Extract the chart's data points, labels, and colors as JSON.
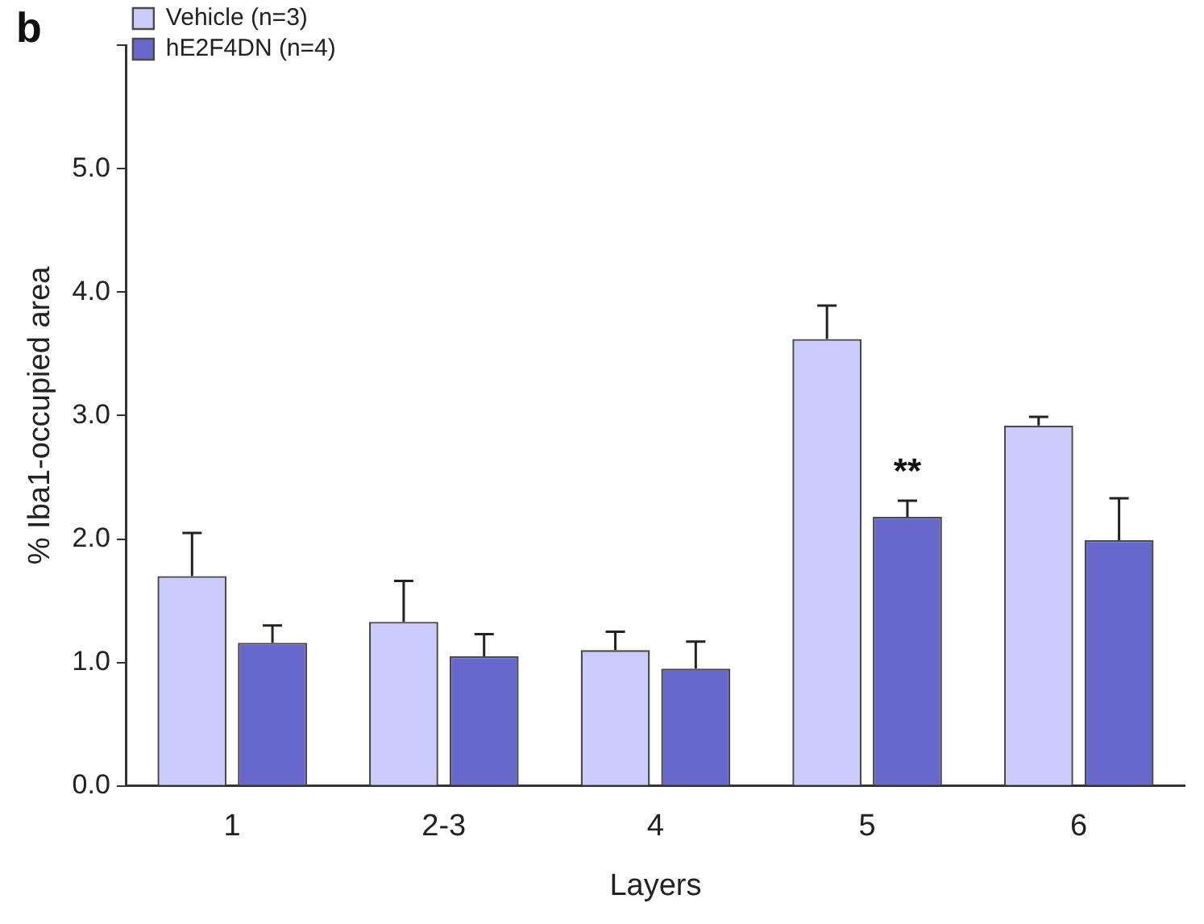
{
  "chart_data": {
    "type": "bar",
    "ylabel": "% Iba1-occupied area",
    "xlabel": "Layers",
    "categories": [
      "1",
      "2-3",
      "4",
      "5",
      "6"
    ],
    "series": [
      {
        "name": "Vehicle (n=3)",
        "color": "#ccccfc",
        "values": [
          1.7,
          1.33,
          1.1,
          3.62,
          2.92
        ],
        "errors": [
          [
            1.7,
            2.05
          ],
          [
            1.33,
            1.66
          ],
          [
            1.1,
            1.25
          ],
          [
            3.62,
            3.89
          ],
          [
            2.92,
            2.99
          ]
        ]
      },
      {
        "name": "hE2F4DN (n=4)",
        "color": "#6868cc",
        "values": [
          1.16,
          1.05,
          0.95,
          2.18,
          1.99
        ],
        "errors": [
          [
            1.16,
            1.3
          ],
          [
            1.05,
            1.23
          ],
          [
            0.95,
            1.17
          ],
          [
            2.18,
            2.31
          ],
          [
            1.99,
            2.33
          ]
        ]
      }
    ],
    "ylim": [
      0,
      6
    ],
    "yticks": [
      {
        "value": 0,
        "label": "0.0"
      },
      {
        "value": 1,
        "label": "1.0"
      },
      {
        "value": 2,
        "label": "2.0"
      },
      {
        "value": 3,
        "label": "3.0"
      },
      {
        "value": 4,
        "label": "4.0"
      },
      {
        "value": 5,
        "label": "5.0"
      },
      {
        "value": 6,
        "label": null
      }
    ],
    "annotations": [
      "b",
      {
        "text": "**",
        "x": "5",
        "y": 2.31
      }
    ],
    "grid": false,
    "legend": "top left"
  }
}
